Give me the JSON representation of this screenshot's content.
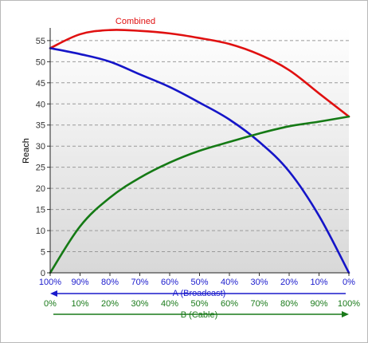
{
  "chart_data": {
    "type": "line",
    "title": "",
    "ylabel": "Reach",
    "ylim": [
      0,
      58
    ],
    "yticks": [
      0,
      5,
      10,
      15,
      20,
      25,
      30,
      35,
      40,
      45,
      50,
      55
    ],
    "grid": true,
    "x_axes": [
      {
        "label": "A (Broadcast)",
        "ticks": [
          "100%",
          "90%",
          "80%",
          "70%",
          "60%",
          "50%",
          "40%",
          "30%",
          "20%",
          "10%",
          "0%"
        ],
        "direction": "left",
        "color": "#1a1acc"
      },
      {
        "label": "B (Cable)",
        "ticks": [
          "0%",
          "10%",
          "20%",
          "30%",
          "40%",
          "50%",
          "60%",
          "70%",
          "80%",
          "90%",
          "100%"
        ],
        "direction": "right",
        "color": "#1a7a1a"
      }
    ],
    "x": [
      0,
      10,
      20,
      30,
      40,
      50,
      60,
      70,
      80,
      90,
      100
    ],
    "series": [
      {
        "name": "Combined",
        "color": "#e01010",
        "label_on_chart": true,
        "values": [
          53.2,
          56.5,
          57.5,
          57.3,
          56.7,
          55.6,
          54.2,
          51.7,
          48,
          42.5,
          37
        ]
      },
      {
        "color": "#1515c8",
        "values": [
          53.2,
          51.8,
          50,
          47,
          44,
          40.3,
          36.3,
          31,
          24,
          13.5,
          0
        ]
      },
      {
        "color": "#157a15",
        "values": [
          0,
          11,
          17.8,
          22.5,
          26.1,
          28.9,
          31,
          33,
          34.7,
          35.8,
          37
        ]
      }
    ]
  }
}
